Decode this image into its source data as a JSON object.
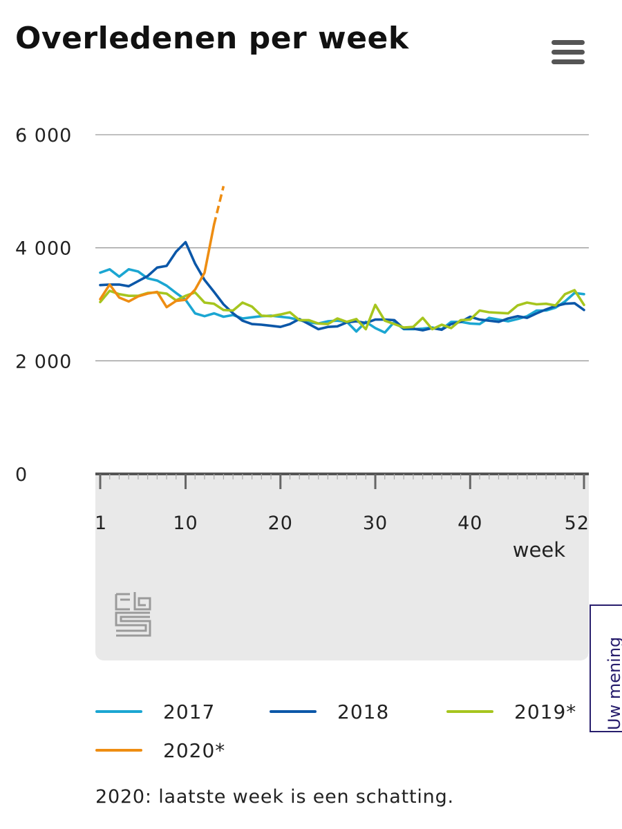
{
  "page": {
    "title": "Overledenen per week"
  },
  "menu": {
    "icon": "hamburger-menu-icon"
  },
  "feedback": {
    "label": "Uw mening"
  },
  "footnote": "2020: laatste week is een schatting.",
  "logo": {
    "icon": "cbs-logo-icon"
  },
  "colors": {
    "s2017": "#1ba6d2",
    "s2018": "#0b57a8",
    "s2019": "#a6c51e",
    "s2020": "#ee8d12",
    "grid": "#9a9a9a",
    "axis": "#555555"
  },
  "chart_data": {
    "type": "line",
    "title": "Overledenen per week",
    "xlabel": "week",
    "ylabel": "",
    "xlim": [
      1,
      52
    ],
    "ylim": [
      0,
      6000
    ],
    "xticks": [
      1,
      10,
      20,
      30,
      40,
      52
    ],
    "yticks": [
      0,
      2000,
      4000,
      6000
    ],
    "ytick_labels": [
      "0",
      "2 000",
      "4 000",
      "6 000"
    ],
    "grid": true,
    "legend_position": "bottom",
    "series": [
      {
        "name": "2017",
        "label": "2017",
        "color": "#1ba6d2",
        "values": [
          3560,
          3620,
          3490,
          3620,
          3580,
          3460,
          3420,
          3330,
          3200,
          3080,
          2840,
          2790,
          2840,
          2780,
          2810,
          2750,
          2770,
          2790,
          2800,
          2780,
          2760,
          2720,
          2680,
          2660,
          2700,
          2710,
          2690,
          2520,
          2690,
          2580,
          2500,
          2690,
          2560,
          2560,
          2570,
          2590,
          2560,
          2690,
          2690,
          2660,
          2650,
          2760,
          2730,
          2700,
          2740,
          2790,
          2890,
          2890,
          2940,
          3050,
          3200,
          3180
        ]
      },
      {
        "name": "2018",
        "label": "2018",
        "color": "#0b57a8",
        "values": [
          3340,
          3350,
          3350,
          3320,
          3410,
          3500,
          3650,
          3680,
          3930,
          4100,
          3720,
          3430,
          3220,
          3000,
          2840,
          2710,
          2650,
          2640,
          2620,
          2600,
          2650,
          2740,
          2650,
          2560,
          2600,
          2610,
          2680,
          2700,
          2670,
          2730,
          2730,
          2720,
          2570,
          2570,
          2540,
          2580,
          2550,
          2650,
          2690,
          2780,
          2730,
          2710,
          2690,
          2750,
          2790,
          2760,
          2840,
          2910,
          2970,
          3010,
          3020,
          2900
        ]
      },
      {
        "name": "2019*",
        "label": "2019*",
        "color": "#a6c51e",
        "values": [
          3040,
          3240,
          3180,
          3150,
          3150,
          3200,
          3210,
          3190,
          3070,
          3150,
          3210,
          3030,
          3010,
          2900,
          2890,
          3030,
          2960,
          2800,
          2790,
          2820,
          2860,
          2720,
          2720,
          2660,
          2650,
          2750,
          2690,
          2740,
          2560,
          2990,
          2710,
          2650,
          2590,
          2600,
          2760,
          2560,
          2640,
          2580,
          2720,
          2730,
          2890,
          2860,
          2850,
          2840,
          2980,
          3030,
          3000,
          3010,
          2980,
          3180,
          3250,
          2990
        ]
      },
      {
        "name": "2020*",
        "label": "2020*",
        "color": "#ee8d12",
        "values": [
          3090,
          3350,
          3120,
          3050,
          3140,
          3190,
          3220,
          2950,
          3060,
          3080,
          3260,
          3560,
          4410
        ],
        "estimate": {
          "week": 14,
          "value": 5090
        }
      }
    ]
  },
  "legend": [
    {
      "label": "2017",
      "color": "#1ba6d2"
    },
    {
      "label": "2018",
      "color": "#0b57a8"
    },
    {
      "label": "2019*",
      "color": "#a6c51e"
    },
    {
      "label": "2020*",
      "color": "#ee8d12"
    }
  ]
}
